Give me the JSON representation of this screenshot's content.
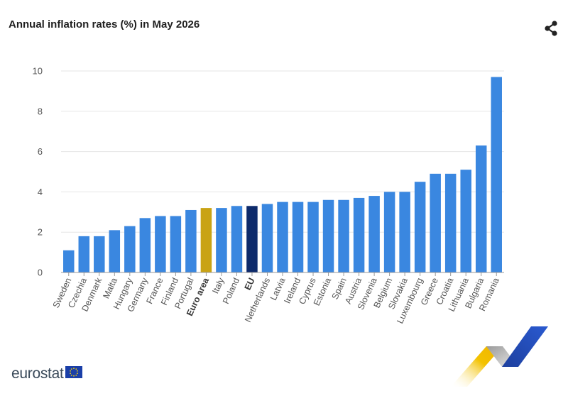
{
  "title": "Annual inflation rates (%) in May 2026",
  "logo_text": "eurostat",
  "icons": {
    "share": "share-icon",
    "flag": "eu-flag-icon"
  },
  "colors": {
    "bar": "#3a87e0",
    "euro_area": "#c9a314",
    "eu": "#0d2a6b",
    "grid": "#e6e6e6",
    "axis": "#9a9a9a"
  },
  "chart_data": {
    "type": "bar",
    "title": "Annual inflation rates (%) in May 2026",
    "xlabel": "",
    "ylabel": "",
    "ylim": [
      0,
      10
    ],
    "yticks": [
      0,
      2,
      4,
      6,
      8,
      10
    ],
    "grid": true,
    "highlight": {
      "Euro area": "euro_area",
      "EU": "eu"
    },
    "categories": [
      "Sweden",
      "Czechia",
      "Denmark",
      "Malta",
      "Hungary",
      "Germany",
      "France",
      "Finland",
      "Portugal",
      "Euro area",
      "Italy",
      "Poland",
      "EU",
      "Netherlands",
      "Latvia",
      "Ireland",
      "Cyprus",
      "Estonia",
      "Spain",
      "Austria",
      "Slovenia",
      "Belgium",
      "Slovakia",
      "Luxembourg",
      "Greece",
      "Croatia",
      "Lithuania",
      "Bulgaria",
      "Romania"
    ],
    "values": [
      1.1,
      1.8,
      1.8,
      2.1,
      2.3,
      2.7,
      2.8,
      2.8,
      3.1,
      3.2,
      3.2,
      3.3,
      3.3,
      3.4,
      3.5,
      3.5,
      3.5,
      3.6,
      3.6,
      3.7,
      3.8,
      4.0,
      4.0,
      4.5,
      4.9,
      4.9,
      5.1,
      6.3,
      9.7
    ]
  }
}
